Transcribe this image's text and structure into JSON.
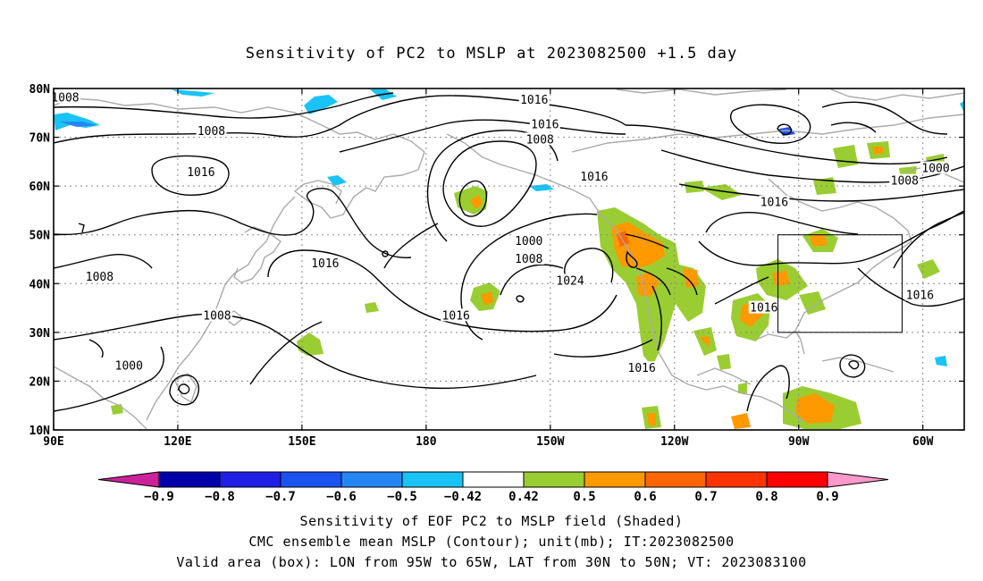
{
  "title": "Sensitivity of PC2 to MSLP at 2023082500 +1.5 day",
  "map": {
    "extent": {
      "lon_min": 90,
      "lon_max": 310,
      "lat_min": 10,
      "lat_max": 80
    },
    "lat_ticks": [
      {
        "lat": 80,
        "label": "80N"
      },
      {
        "lat": 70,
        "label": "70N"
      },
      {
        "lat": 60,
        "label": "60N"
      },
      {
        "lat": 50,
        "label": "50N"
      },
      {
        "lat": 40,
        "label": "40N"
      },
      {
        "lat": 30,
        "label": "30N"
      },
      {
        "lat": 20,
        "label": "20N"
      },
      {
        "lat": 10,
        "label": "10N"
      }
    ],
    "lon_ticks": [
      {
        "lon": 90,
        "label": "90E"
      },
      {
        "lon": 120,
        "label": "120E"
      },
      {
        "lon": 150,
        "label": "150E"
      },
      {
        "lon": 180,
        "label": "180"
      },
      {
        "lon": 210,
        "label": "150W"
      },
      {
        "lon": 240,
        "label": "120W"
      },
      {
        "lon": 270,
        "label": "90W"
      },
      {
        "lon": 300,
        "label": "60W"
      }
    ],
    "grid": "dotted",
    "valid_box": {
      "lon_min": 265,
      "lon_max": 295,
      "lat_min": 30,
      "lat_max": 50
    },
    "contour_labels": [
      {
        "text": "1008",
        "lon": 92.8,
        "lat": 78.1
      },
      {
        "text": "1016",
        "lon": 206.1,
        "lat": 77.6
      },
      {
        "text": "1016",
        "lon": 208.7,
        "lat": 72.6
      },
      {
        "text": "1008",
        "lon": 207.5,
        "lat": 69.5
      },
      {
        "text": "1008",
        "lon": 128.1,
        "lat": 71.2
      },
      {
        "text": "1016",
        "lon": 125.6,
        "lat": 62.8
      },
      {
        "text": "1016",
        "lon": 220.6,
        "lat": 61.9
      },
      {
        "text": "1000",
        "lon": 303.1,
        "lat": 63.6
      },
      {
        "text": "1008",
        "lon": 295.6,
        "lat": 61.0
      },
      {
        "text": "1016",
        "lon": 264.1,
        "lat": 56.6
      },
      {
        "text": "1000",
        "lon": 204.8,
        "lat": 48.7
      },
      {
        "text": "1008",
        "lon": 204.8,
        "lat": 45.0
      },
      {
        "text": "1016",
        "lon": 155.6,
        "lat": 44.1
      },
      {
        "text": "1008",
        "lon": 101.1,
        "lat": 41.3
      },
      {
        "text": "1024",
        "lon": 214.8,
        "lat": 40.5
      },
      {
        "text": "1016",
        "lon": 187.2,
        "lat": 33.4
      },
      {
        "text": "1008",
        "lon": 129.5,
        "lat": 33.4
      },
      {
        "text": "1016",
        "lon": 261.6,
        "lat": 35.0
      },
      {
        "text": "1016",
        "lon": 299.3,
        "lat": 37.6
      },
      {
        "text": "1000",
        "lon": 108.2,
        "lat": 23.1
      },
      {
        "text": "1016",
        "lon": 232.1,
        "lat": 22.6
      }
    ]
  },
  "colorbar": {
    "labels": [
      "−0.9",
      "−0.8",
      "−0.7",
      "−0.6",
      "−0.5",
      "−0.42",
      "0.42",
      "0.5",
      "0.6",
      "0.7",
      "0.8",
      "0.9"
    ],
    "colors": [
      "#0000aa",
      "#1f1fe6",
      "#1a52f0",
      "#2685f5",
      "#19c3f5",
      "#ffffff",
      "#9acd32",
      "#ff9900",
      "#ff6600",
      "#ff3300",
      "#ff0000"
    ],
    "low_color": "#cc2299",
    "high_color": "#ff99cc"
  },
  "captions": [
    "Sensitivity of EOF PC2 to MSLP field (Shaded)",
    "CMC ensemble mean MSLP (Contour); unit(mb); IT:2023082500",
    "Valid area (box): LON from 95W to 65W, LAT from 30N to 50N; VT: 2023083100"
  ]
}
